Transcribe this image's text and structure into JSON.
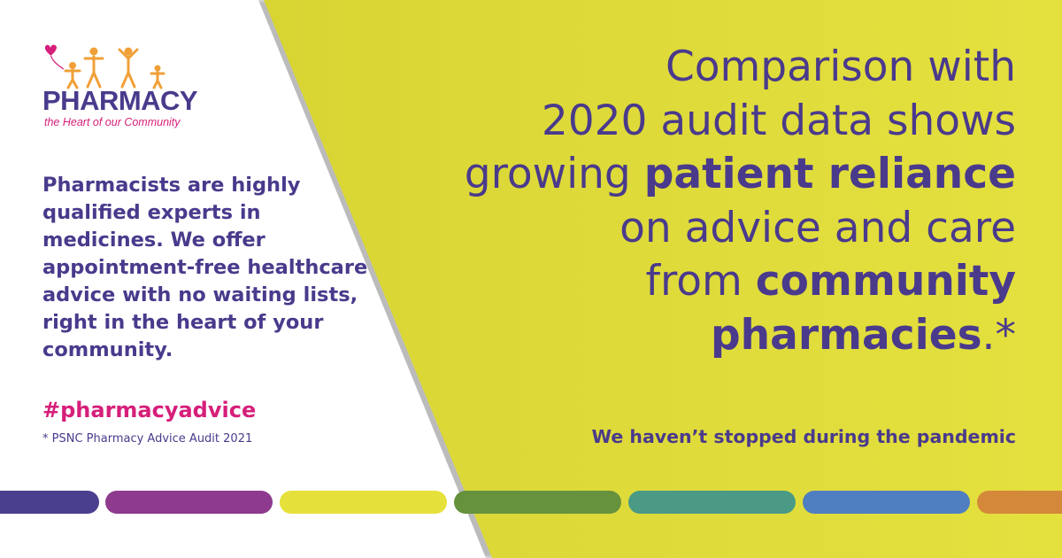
{
  "logo": {
    "word": "PHARMACY",
    "tagline": "the Heart of our Community",
    "icon": "family-with-heart-balloon-icon"
  },
  "left": {
    "body": "Pharmacists are highly qualified experts in medicines. We offer appointment-free healthcare advice with no waiting lists, right in the heart of your community.",
    "hashtag": "#pharmacyadvice",
    "footnote": "* PSNC Pharmacy Advice Audit 2021"
  },
  "headline": {
    "l1": "Comparison with",
    "l2": "2020 audit data shows",
    "l3a": "growing ",
    "l3b": "patient reliance",
    "l4": "on advice and care",
    "l5a": "from ",
    "l5b": "community",
    "l6a": "pharmacies",
    "l6b": ".*"
  },
  "tagline": "We haven’t stopped during the pandemic",
  "colors": {
    "purple": "#4a3a8c",
    "magenta": "#d61f7a",
    "yellow": "#dcd838",
    "logo_orange": "#f0a038",
    "stripes": [
      "#4a3f8f",
      "#8e3a8e",
      "#e6e13a",
      "#66923e",
      "#4a9a86",
      "#4f7fc0",
      "#d4893a"
    ]
  }
}
